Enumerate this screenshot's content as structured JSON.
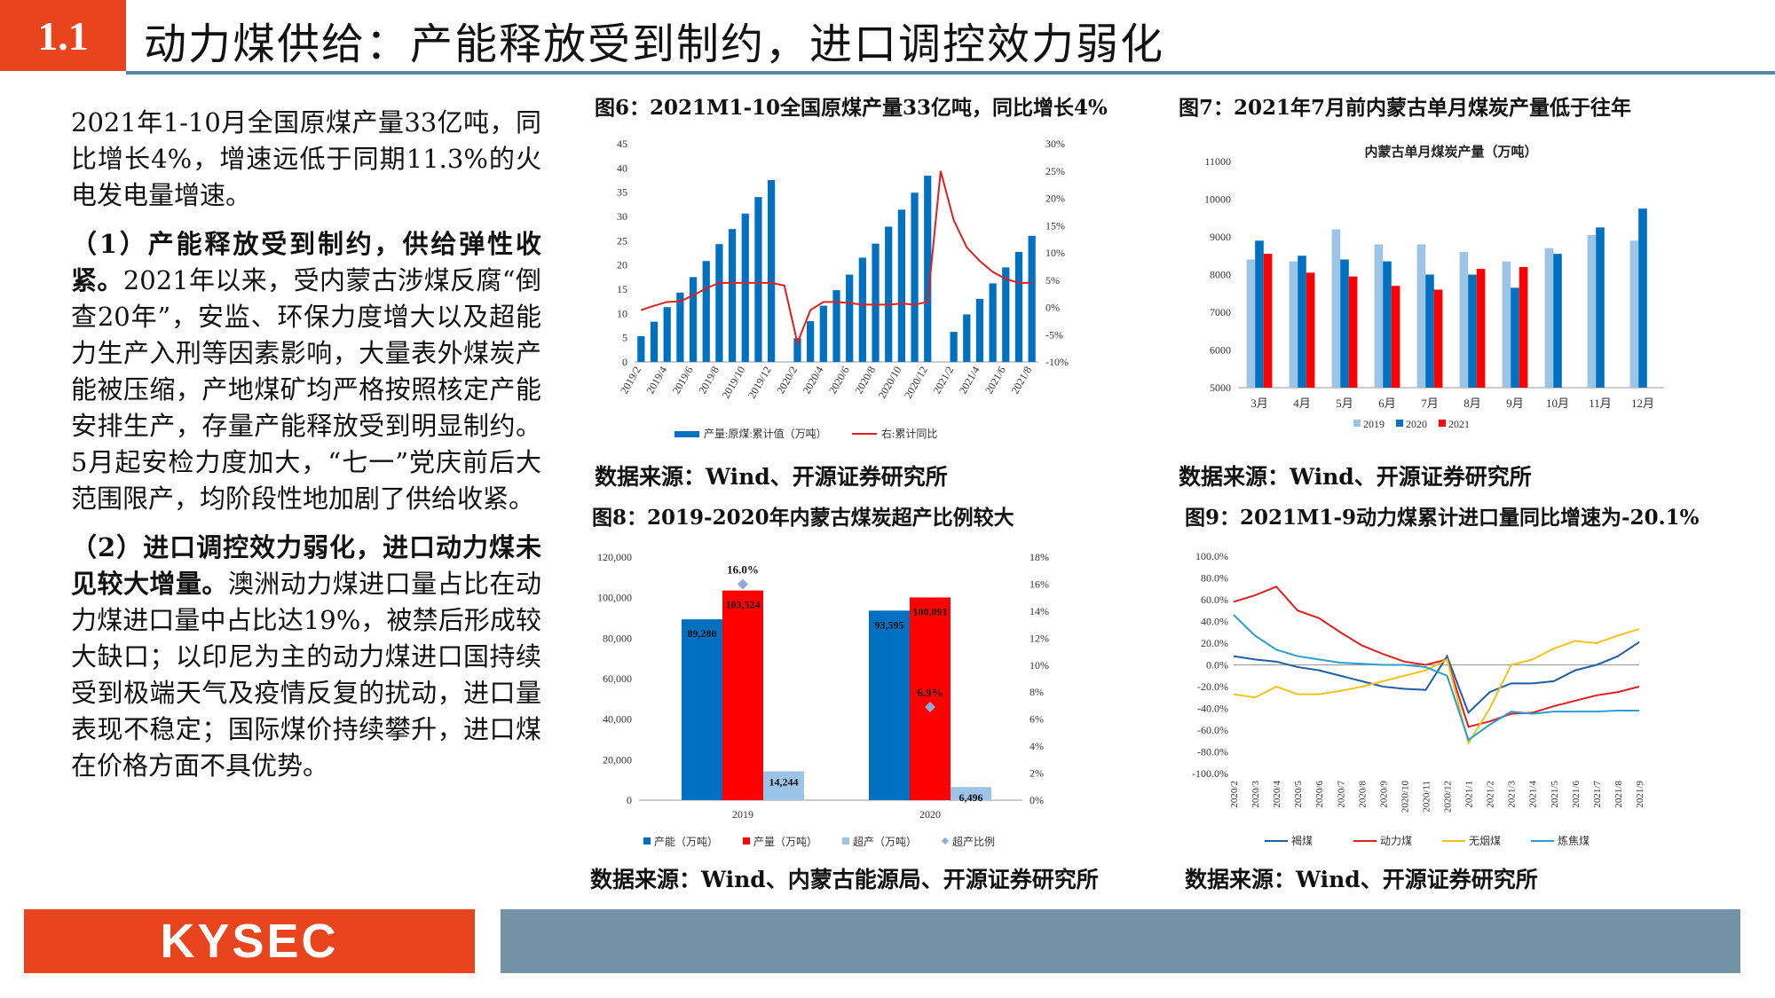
{
  "header": {
    "section": "1.1",
    "title": "动力煤供给：产能释放受到制约，进口调控效力弱化"
  },
  "left": {
    "p1": "2021年1-10月全国原煤产量33亿吨，同比增长4%，增速远低于同期11.3%的火电发电量增速。",
    "p2_bold": "（1）产能释放受到制约，供给弹性收紧。",
    "p2_rest": "2021年以来，受内蒙古涉煤反腐“倒查20年”，安监、环保力度增大以及超能力生产入刑等因素影响，大量表外煤炭产能被压缩，产地煤矿均严格按照核定产能安排生产，存量产能释放受到明显制约。5月起安检力度加大，“七一”党庆前后大范围限产，均阶段性地加剧了供给收紧。",
    "p3_bold": "（2）进口调控效力弱化，进口动力煤未见较大增量。",
    "p3_rest": "澳洲动力煤进口量占比在动力煤进口量中占比达19%，被禁后形成较大缺口；以印尼为主的动力煤进口国持续受到极端天气及疫情反复的扰动，进口量表现不稳定；国际煤价持续攀升，进口煤在价格方面不具优势。"
  },
  "figures": {
    "fig6": {
      "title": "图6：2021M1-10全国原煤产量33亿吨，同比增长4%",
      "source": "数据来源：Wind、开源证券研究所"
    },
    "fig7": {
      "title": "图7：2021年7月前内蒙古单月煤炭产量低于往年",
      "source": "数据来源：Wind、开源证券研究所"
    },
    "fig8": {
      "title": "图8：2019-2020年内蒙古煤炭超产比例较大",
      "source": "数据来源：Wind、内蒙古能源局、开源证券研究所"
    },
    "fig9": {
      "title": "图9：2021M1-9动力煤累计进口量同比增速为-20.1%",
      "source": "数据来源：Wind、开源证券研究所"
    }
  },
  "footer": {
    "logo": "KYSEC"
  },
  "chart_data": [
    {
      "type": "bar",
      "id": "fig6",
      "categories": [
        "2019/2",
        "2019/3",
        "2019/4",
        "2019/5",
        "2019/6",
        "2019/7",
        "2019/8",
        "2019/9",
        "2019/10",
        "2019/11",
        "2019/12",
        "2020/1",
        "2020/2",
        "2020/3",
        "2020/4",
        "2020/5",
        "2020/6",
        "2020/7",
        "2020/8",
        "2020/9",
        "2020/10",
        "2020/11",
        "2020/12",
        "2021/1",
        "2021/2",
        "2021/3",
        "2021/4",
        "2021/5",
        "2021/6",
        "2021/7",
        "2021/8"
      ],
      "xtick_labels": [
        "2019/2",
        "2019/4",
        "2019/6",
        "2019/8",
        "2019/10",
        "2019/12",
        "2020/2",
        "2020/4",
        "2020/6",
        "2020/8",
        "2020/10",
        "2020/12",
        "2021/2",
        "2021/4",
        "2021/6",
        "2021/8"
      ],
      "series": [
        {
          "name": "产量:原煤:累计值（万吨）",
          "axis": "left",
          "color": "#0070c0",
          "values": [
            5.3,
            8.3,
            11.3,
            14.3,
            17.5,
            20.8,
            24.3,
            27.4,
            30.6,
            34.0,
            37.5,
            null,
            4.9,
            8.4,
            11.6,
            14.8,
            18.0,
            21.5,
            24.4,
            27.9,
            31.4,
            34.9,
            38.4,
            null,
            6.2,
            9.8,
            13.0,
            16.2,
            19.5,
            22.7,
            26.0
          ]
        },
        {
          "name": "右:累计同比",
          "axis": "right",
          "type": "line",
          "color": "#e02020",
          "values": [
            -0.5,
            0.3,
            1.0,
            1.1,
            2.2,
            3.5,
            4.5,
            4.5,
            4.5,
            4.5,
            4.5,
            4.0,
            -6.5,
            -0.5,
            1.0,
            1.0,
            0.8,
            0.5,
            0.5,
            0.5,
            0.7,
            0.5,
            1.0,
            25,
            16,
            11,
            8.5,
            6.5,
            5.2,
            4.5,
            4.5
          ]
        }
      ],
      "ylim_left": [
        0,
        45
      ],
      "yticks_left": [
        0,
        5,
        10,
        15,
        20,
        25,
        30,
        35,
        40,
        45
      ],
      "ylim_right": [
        -10,
        30
      ],
      "yticks_right": [
        "-10%",
        "-5%",
        "0%",
        "5%",
        "10%",
        "15%",
        "20%",
        "25%",
        "30%"
      ],
      "legend": "bottom"
    },
    {
      "type": "bar",
      "id": "fig7",
      "title": "内蒙古单月煤炭产量（万吨）",
      "categories": [
        "3月",
        "4月",
        "5月",
        "6月",
        "7月",
        "8月",
        "9月",
        "10月",
        "11月",
        "12月"
      ],
      "series": [
        {
          "name": "2019",
          "color": "#9dc3e6",
          "values": [
            8400,
            8350,
            9200,
            8800,
            8800,
            8600,
            8350,
            8700,
            9050,
            8900
          ]
        },
        {
          "name": "2020",
          "color": "#0070c0",
          "values": [
            8900,
            8500,
            8400,
            8350,
            8000,
            8000,
            7650,
            8550,
            9250,
            9750
          ]
        },
        {
          "name": "2021",
          "color": "#ff0000",
          "values": [
            8550,
            8050,
            7950,
            7700,
            7600,
            8150,
            8200,
            null,
            null,
            null
          ]
        }
      ],
      "ylim": [
        5000,
        11000
      ],
      "yticks": [
        5000,
        6000,
        7000,
        8000,
        9000,
        10000,
        11000
      ],
      "legend": "bottom"
    },
    {
      "type": "bar",
      "id": "fig8",
      "categories": [
        "2019",
        "2020"
      ],
      "series": [
        {
          "name": "产能（万吨）",
          "color": "#0070c0",
          "values": [
            89280,
            93595
          ]
        },
        {
          "name": "产量（万吨）",
          "color": "#ff0000",
          "values": [
            103524,
            100091
          ]
        },
        {
          "name": "超产（万吨）",
          "color": "#9dc3e6",
          "values": [
            14244,
            6496
          ]
        },
        {
          "name": "超产比例",
          "axis": "right",
          "type": "scatter",
          "color": "#8eaadb",
          "values": [
            16.0,
            6.9
          ]
        }
      ],
      "data_labels": {
        "capacity": [
          "89,280",
          "93,595"
        ],
        "output": [
          "103,524",
          "100,091"
        ],
        "over": [
          "14,244",
          "6,496"
        ],
        "ratio": [
          "16.0%",
          "6.9%"
        ]
      },
      "ylim_left": [
        0,
        120000
      ],
      "yticks_left": [
        "0",
        "20,000",
        "40,000",
        "60,000",
        "80,000",
        "100,000",
        "120,000"
      ],
      "ylim_right": [
        0,
        18
      ],
      "yticks_right": [
        "0%",
        "2%",
        "4%",
        "6%",
        "8%",
        "10%",
        "12%",
        "14%",
        "16%",
        "18%"
      ],
      "legend": "bottom"
    },
    {
      "type": "line",
      "id": "fig9",
      "categories": [
        "2020/2",
        "2020/3",
        "2020/4",
        "2020/5",
        "2020/6",
        "2020/7",
        "2020/8",
        "2020/9",
        "2020/10",
        "2020/11",
        "2020/12",
        "2021/1",
        "2021/2",
        "2021/3",
        "2021/4",
        "2021/5",
        "2021/6",
        "2021/7",
        "2021/8",
        "2021/9"
      ],
      "series": [
        {
          "name": "褐煤",
          "color": "#1f5fa8",
          "values": [
            8,
            5,
            3,
            -2,
            -5,
            -10,
            -15,
            -20,
            -22,
            -23,
            8,
            -44,
            -25,
            -17,
            -17,
            -15,
            -5,
            0,
            8,
            21
          ]
        },
        {
          "name": "动力煤",
          "color": "#e02020",
          "values": [
            58,
            64,
            72,
            50,
            43,
            30,
            18,
            10,
            3,
            0,
            5,
            -57,
            -52,
            -45,
            -44,
            -38,
            -33,
            -28,
            -25,
            -20
          ]
        },
        {
          "name": "无烟煤",
          "color": "#f0c419",
          "values": [
            -27,
            -30,
            -20,
            -27,
            -27,
            -24,
            -20,
            -15,
            -10,
            -5,
            5,
            -72,
            -40,
            0,
            5,
            15,
            22,
            20,
            27,
            33
          ]
        },
        {
          "name": "炼焦煤",
          "color": "#2b9fd0",
          "values": [
            46,
            27,
            14,
            8,
            5,
            2,
            1,
            0,
            0,
            -2,
            -10,
            -69,
            -55,
            -43,
            -45,
            -43,
            -43,
            -43,
            -42,
            -42
          ]
        }
      ],
      "ylim": [
        -100,
        100
      ],
      "yticks": [
        "-100.0%",
        "-80.0%",
        "-60.0%",
        "-40.0%",
        "-20.0%",
        "0.0%",
        "20.0%",
        "40.0%",
        "60.0%",
        "80.0%",
        "100.0%"
      ],
      "legend": "bottom"
    }
  ]
}
